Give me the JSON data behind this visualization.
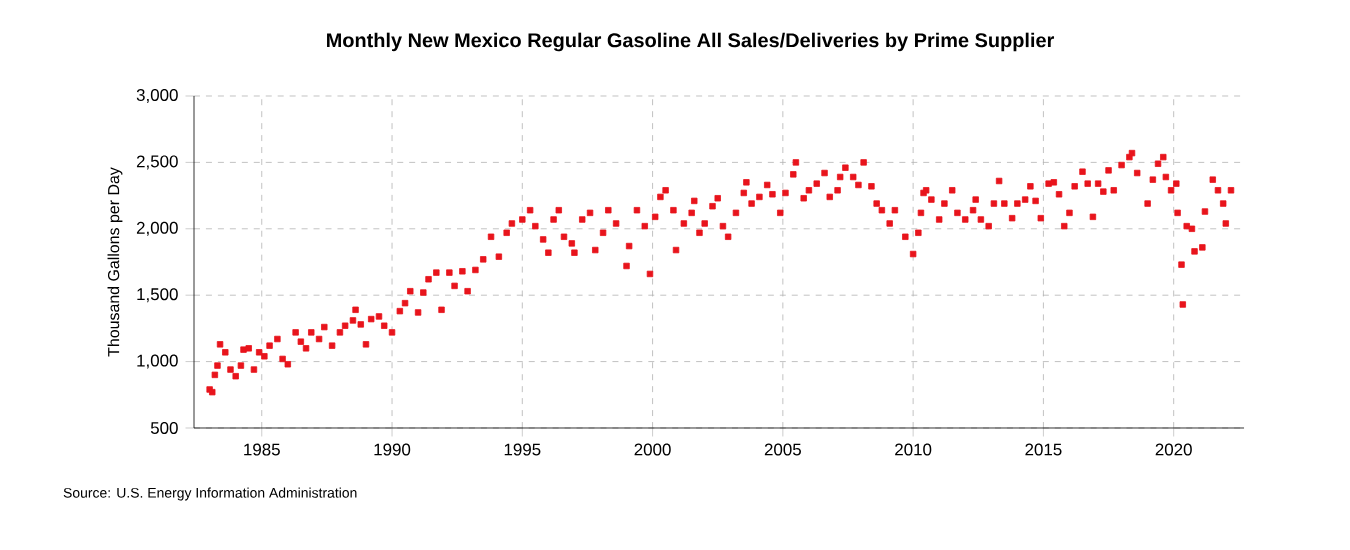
{
  "chart_data": {
    "type": "scatter",
    "title": "Monthly New Mexico Regular Gasoline All Sales/Deliveries by Prime Supplier",
    "ylabel": "Thousand Gallons per Day",
    "annotations": [
      "Source: U.S. Energy Information Administration"
    ],
    "color": "#e8141c",
    "marker": "square",
    "grid": true,
    "xlim": [
      1982.4,
      2022.7
    ],
    "ylim": [
      500,
      3000
    ],
    "xticks": [
      1985,
      1990,
      1995,
      2000,
      2005,
      2010,
      2015,
      2020
    ],
    "yticks": [
      {
        "value": 500,
        "label": "500"
      },
      {
        "value": 1000,
        "label": "1,000"
      },
      {
        "value": 1500,
        "label": "1,500"
      },
      {
        "value": 2000,
        "label": "2,000"
      },
      {
        "value": 2500,
        "label": "2,500"
      },
      {
        "value": 3000,
        "label": "3,000"
      }
    ],
    "x": [
      1983.0,
      1983.1,
      1983.2,
      1983.3,
      1983.4,
      1983.6,
      1983.8,
      1984.0,
      1984.2,
      1984.3,
      1984.5,
      1984.7,
      1984.9,
      1985.1,
      1985.3,
      1985.6,
      1985.8,
      1986.0,
      1986.3,
      1986.5,
      1986.7,
      1986.9,
      1987.2,
      1987.4,
      1987.7,
      1988.0,
      1988.2,
      1988.5,
      1988.6,
      1988.8,
      1989.0,
      1989.2,
      1989.5,
      1989.7,
      1990.0,
      1990.3,
      1990.5,
      1990.7,
      1991.0,
      1991.2,
      1991.4,
      1991.7,
      1991.9,
      1992.2,
      1992.4,
      1992.7,
      1992.9,
      1993.2,
      1993.5,
      1993.8,
      1994.1,
      1994.4,
      1994.6,
      1995.0,
      1995.3,
      1995.5,
      1995.8,
      1996.0,
      1996.2,
      1996.4,
      1996.6,
      1996.9,
      1997.0,
      1997.3,
      1997.6,
      1997.8,
      1998.1,
      1998.3,
      1998.6,
      1999.0,
      1999.1,
      1999.4,
      1999.7,
      1999.9,
      2000.1,
      2000.3,
      2000.5,
      2000.8,
      2000.9,
      2001.2,
      2001.5,
      2001.6,
      2001.8,
      2002.0,
      2002.3,
      2002.5,
      2002.7,
      2002.9,
      2003.2,
      2003.5,
      2003.6,
      2003.8,
      2004.1,
      2004.4,
      2004.6,
      2004.9,
      2005.1,
      2005.4,
      2005.5,
      2005.8,
      2006.0,
      2006.3,
      2006.6,
      2006.8,
      2007.1,
      2007.2,
      2007.4,
      2007.7,
      2007.9,
      2008.1,
      2008.4,
      2008.6,
      2008.8,
      2009.1,
      2009.3,
      2009.7,
      2010.0,
      2010.2,
      2010.3,
      2010.4,
      2010.5,
      2010.7,
      2011.0,
      2011.2,
      2011.5,
      2011.7,
      2012.0,
      2012.3,
      2012.4,
      2012.6,
      2012.9,
      2013.1,
      2013.3,
      2013.5,
      2013.8,
      2014.0,
      2014.3,
      2014.5,
      2014.7,
      2014.9,
      2015.2,
      2015.4,
      2015.6,
      2015.8,
      2016.0,
      2016.2,
      2016.5,
      2016.7,
      2016.9,
      2017.1,
      2017.3,
      2017.5,
      2017.7,
      2018.0,
      2018.3,
      2018.4,
      2018.6,
      2019.0,
      2019.2,
      2019.4,
      2019.6,
      2019.7,
      2019.9,
      2020.1,
      2020.15,
      2020.3,
      2020.35,
      2020.5,
      2020.7,
      2020.8,
      2021.1,
      2021.2,
      2021.5,
      2021.7,
      2021.9,
      2022.0,
      2022.2
    ],
    "values": [
      790,
      770,
      900,
      970,
      1130,
      1070,
      940,
      890,
      970,
      1090,
      1100,
      940,
      1070,
      1040,
      1120,
      1170,
      1020,
      980,
      1220,
      1150,
      1100,
      1220,
      1170,
      1260,
      1120,
      1220,
      1270,
      1310,
      1390,
      1280,
      1130,
      1320,
      1340,
      1270,
      1220,
      1380,
      1440,
      1530,
      1370,
      1520,
      1620,
      1670,
      1390,
      1670,
      1570,
      1680,
      1530,
      1690,
      1770,
      1940,
      1790,
      1970,
      2040,
      2070,
      2140,
      2020,
      1920,
      1820,
      2070,
      2140,
      1940,
      1890,
      1820,
      2070,
      2120,
      1840,
      1970,
      2140,
      2040,
      1720,
      1870,
      2140,
      2020,
      1660,
      2090,
      2240,
      2290,
      2140,
      1840,
      2040,
      2120,
      2210,
      1970,
      2040,
      2170,
      2230,
      2020,
      1940,
      2120,
      2270,
      2350,
      2190,
      2240,
      2330,
      2260,
      2120,
      2270,
      2410,
      2500,
      2230,
      2290,
      2340,
      2420,
      2240,
      2290,
      2390,
      2460,
      2390,
      2330,
      2500,
      2320,
      2190,
      2140,
      2040,
      2140,
      1940,
      1810,
      1970,
      2120,
      2270,
      2290,
      2220,
      2070,
      2190,
      2290,
      2120,
      2070,
      2140,
      2220,
      2070,
      2020,
      2190,
      2360,
      2190,
      2080,
      2190,
      2220,
      2320,
      2210,
      2080,
      2340,
      2350,
      2260,
      2020,
      2120,
      2320,
      2430,
      2340,
      2090,
      2340,
      2280,
      2440,
      2290,
      2480,
      2540,
      2570,
      2420,
      2190,
      2370,
      2490,
      2540,
      2390,
      2290,
      2340,
      2120,
      1730,
      1430,
      2020,
      2000,
      1830,
      1860,
      2130,
      2370,
      2290,
      2190,
      2040,
      2290
    ]
  }
}
